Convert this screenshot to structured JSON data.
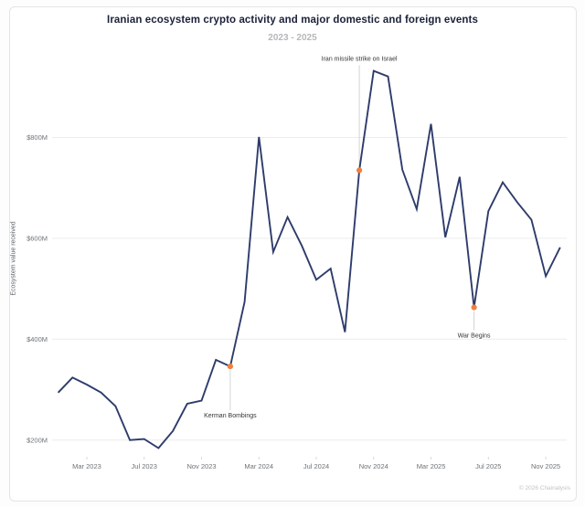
{
  "header": {
    "title": "Iranian ecosystem crypto activity and major domestic and foreign events",
    "subtitle": "2023 - 2025"
  },
  "footer": {
    "copyright": "© 2026 Chainalysis"
  },
  "chart_data": {
    "type": "line",
    "title": "Iranian ecosystem crypto activity and major domestic and foreign events",
    "subtitle": "2023 - 2025",
    "xlabel": "",
    "ylabel": "Ecosystem value received",
    "unit": "USD millions",
    "grid": "horizontal",
    "legend": "none",
    "ylim": [
      150,
      960
    ],
    "line_color": "#2e3c6b",
    "marker_color": "#f0803c",
    "x": [
      "Jan 2023",
      "Feb 2023",
      "Mar 2023",
      "Apr 2023",
      "May 2023",
      "Jun 2023",
      "Jul 2023",
      "Aug 2023",
      "Sep 2023",
      "Oct 2023",
      "Nov 2023",
      "Dec 2023",
      "Jan 2024",
      "Feb 2024",
      "Mar 2024",
      "Apr 2024",
      "May 2024",
      "Jun 2024",
      "Jul 2024",
      "Aug 2024",
      "Sep 2024",
      "Oct 2024",
      "Nov 2024",
      "Dec 2024",
      "Jan 2025",
      "Feb 2025",
      "Mar 2025",
      "Apr 2025",
      "May 2025",
      "Jun 2025",
      "Jul 2025",
      "Aug 2025",
      "Sep 2025",
      "Oct 2025",
      "Nov 2025",
      "Dec 2025"
    ],
    "values": [
      294,
      324,
      310,
      294,
      267,
      200,
      202,
      184,
      218,
      272,
      278,
      359,
      346,
      474,
      801,
      573,
      642,
      585,
      518,
      540,
      414,
      735,
      932,
      921,
      736,
      658,
      827,
      602,
      722,
      463,
      654,
      711,
      672,
      637,
      525,
      582
    ],
    "y_ticks": [
      {
        "label": "$200M",
        "value": 200
      },
      {
        "label": "$400M",
        "value": 400
      },
      {
        "label": "$600M",
        "value": 600
      },
      {
        "label": "$800M",
        "value": 800
      }
    ],
    "x_tick_start_index": 2,
    "x_tick_every": 4,
    "x_tick_labels": [
      "Mar 2023",
      "Jul 2023",
      "Nov 2023",
      "Mar 2024",
      "Jul 2024",
      "Nov 2024",
      "Mar 2025",
      "Jul 2025",
      "Nov 2025"
    ],
    "events": [
      {
        "label": "Kerman Bombings",
        "month": "Jan 2024",
        "value": 346,
        "label_side": "below",
        "label_dy": 56
      },
      {
        "label": "Iran missile strike on Israel",
        "month": "Oct 2024",
        "value": 735,
        "label_side": "above",
        "label_dy": -120
      },
      {
        "label": "War Begins",
        "month": "Jun 2025",
        "value": 463,
        "label_side": "below",
        "label_dy": 33
      }
    ]
  }
}
